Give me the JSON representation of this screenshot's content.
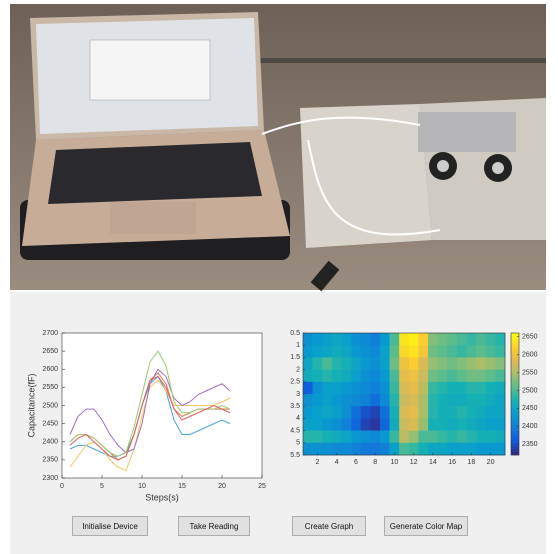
{
  "chart_data": [
    {
      "type": "line",
      "xlabel": "Steps(s)",
      "ylabel": "Capacitance(fF)",
      "x": [
        1,
        2,
        3,
        4,
        5,
        6,
        7,
        8,
        9,
        10,
        11,
        12,
        13,
        14,
        15,
        16,
        17,
        18,
        19,
        20,
        21
      ],
      "xlim": [
        0,
        25
      ],
      "xticks": [
        0,
        5,
        10,
        15,
        20,
        25
      ],
      "ylim": [
        2300,
        2700
      ],
      "yticks": [
        2300,
        2350,
        2400,
        2450,
        2500,
        2550,
        2600,
        2650,
        2700
      ],
      "series": [
        {
          "color": "#4da3e0",
          "values": [
            2380,
            2390,
            2390,
            2380,
            2370,
            2360,
            2360,
            2370,
            2420,
            2500,
            2560,
            2580,
            2540,
            2460,
            2420,
            2420,
            2430,
            2440,
            2450,
            2460,
            2450
          ]
        },
        {
          "color": "#e07a4a",
          "values": [
            2400,
            2420,
            2420,
            2410,
            2390,
            2370,
            2350,
            2360,
            2420,
            2500,
            2570,
            2590,
            2560,
            2490,
            2470,
            2480,
            2490,
            2490,
            2490,
            2490,
            2490
          ]
        },
        {
          "color": "#f0c860",
          "values": [
            2330,
            2360,
            2390,
            2400,
            2380,
            2350,
            2330,
            2320,
            2380,
            2470,
            2550,
            2570,
            2540,
            2500,
            2500,
            2500,
            2500,
            2500,
            2500,
            2510,
            2520
          ]
        },
        {
          "color": "#a070c0",
          "values": [
            2420,
            2470,
            2490,
            2490,
            2460,
            2420,
            2390,
            2370,
            2380,
            2450,
            2560,
            2600,
            2580,
            2520,
            2500,
            2510,
            2530,
            2540,
            2550,
            2560,
            2540
          ]
        },
        {
          "color": "#9cc870",
          "values": [
            2400,
            2420,
            2420,
            2410,
            2390,
            2370,
            2360,
            2370,
            2440,
            2530,
            2620,
            2650,
            2610,
            2510,
            2480,
            2480,
            2490,
            2490,
            2490,
            2500,
            2490
          ]
        },
        {
          "color": "#e06060",
          "values": [
            2390,
            2410,
            2420,
            2400,
            2380,
            2360,
            2350,
            2360,
            2420,
            2500,
            2570,
            2580,
            2550,
            2490,
            2460,
            2470,
            2480,
            2490,
            2500,
            2490,
            2480
          ]
        }
      ]
    },
    {
      "type": "heatmap",
      "xlim": [
        0.5,
        21.5
      ],
      "xticks": [
        2,
        4,
        6,
        8,
        10,
        12,
        14,
        16,
        18,
        20
      ],
      "ylim": [
        0.5,
        5.5
      ],
      "yticks": [
        0.5,
        1,
        1.5,
        2,
        2.5,
        3,
        3.5,
        4,
        4.5,
        5,
        5.5
      ],
      "clim": [
        2320,
        2660
      ],
      "cticks": [
        2350,
        2400,
        2450,
        2500,
        2550,
        2600,
        2650
      ],
      "z": [
        [
          2420,
          2430,
          2440,
          2450,
          2440,
          2420,
          2410,
          2400,
          2430,
          2500,
          2640,
          2650,
          2620,
          2530,
          2520,
          2510,
          2500,
          2490,
          2500,
          2490,
          2480
        ],
        [
          2430,
          2440,
          2450,
          2460,
          2450,
          2430,
          2420,
          2410,
          2440,
          2510,
          2630,
          2640,
          2610,
          2520,
          2510,
          2500,
          2490,
          2500,
          2510,
          2500,
          2490
        ],
        [
          2450,
          2480,
          2500,
          2480,
          2470,
          2450,
          2430,
          2420,
          2440,
          2520,
          2600,
          2620,
          2580,
          2540,
          2530,
          2520,
          2530,
          2540,
          2550,
          2540,
          2530
        ],
        [
          2460,
          2470,
          2480,
          2470,
          2460,
          2440,
          2420,
          2410,
          2430,
          2500,
          2590,
          2600,
          2570,
          2520,
          2510,
          2500,
          2510,
          2520,
          2520,
          2510,
          2500
        ],
        [
          2360,
          2420,
          2440,
          2440,
          2430,
          2420,
          2410,
          2400,
          2420,
          2490,
          2580,
          2590,
          2560,
          2490,
          2480,
          2470,
          2470,
          2480,
          2480,
          2470,
          2460
        ],
        [
          2420,
          2430,
          2440,
          2430,
          2420,
          2410,
          2400,
          2380,
          2410,
          2480,
          2570,
          2580,
          2550,
          2480,
          2470,
          2460,
          2460,
          2470,
          2470,
          2460,
          2450
        ],
        [
          2430,
          2440,
          2450,
          2440,
          2420,
          2380,
          2350,
          2340,
          2380,
          2470,
          2580,
          2590,
          2550,
          2480,
          2470,
          2470,
          2480,
          2470,
          2460,
          2450,
          2450
        ],
        [
          2440,
          2440,
          2430,
          2420,
          2400,
          2370,
          2340,
          2330,
          2370,
          2460,
          2570,
          2580,
          2540,
          2470,
          2470,
          2460,
          2470,
          2460,
          2450,
          2440,
          2440
        ],
        [
          2480,
          2480,
          2470,
          2460,
          2450,
          2430,
          2420,
          2410,
          2430,
          2490,
          2560,
          2540,
          2500,
          2500,
          2490,
          2480,
          2490,
          2480,
          2470,
          2470,
          2460
        ],
        [
          2420,
          2420,
          2420,
          2410,
          2410,
          2400,
          2390,
          2390,
          2400,
          2440,
          2500,
          2490,
          2470,
          2450,
          2450,
          2440,
          2440,
          2440,
          2430,
          2430,
          2430
        ]
      ]
    }
  ],
  "buttons": [
    "Initialise Device",
    "Take Reading",
    "Create Graph",
    "Generate Color Map"
  ]
}
